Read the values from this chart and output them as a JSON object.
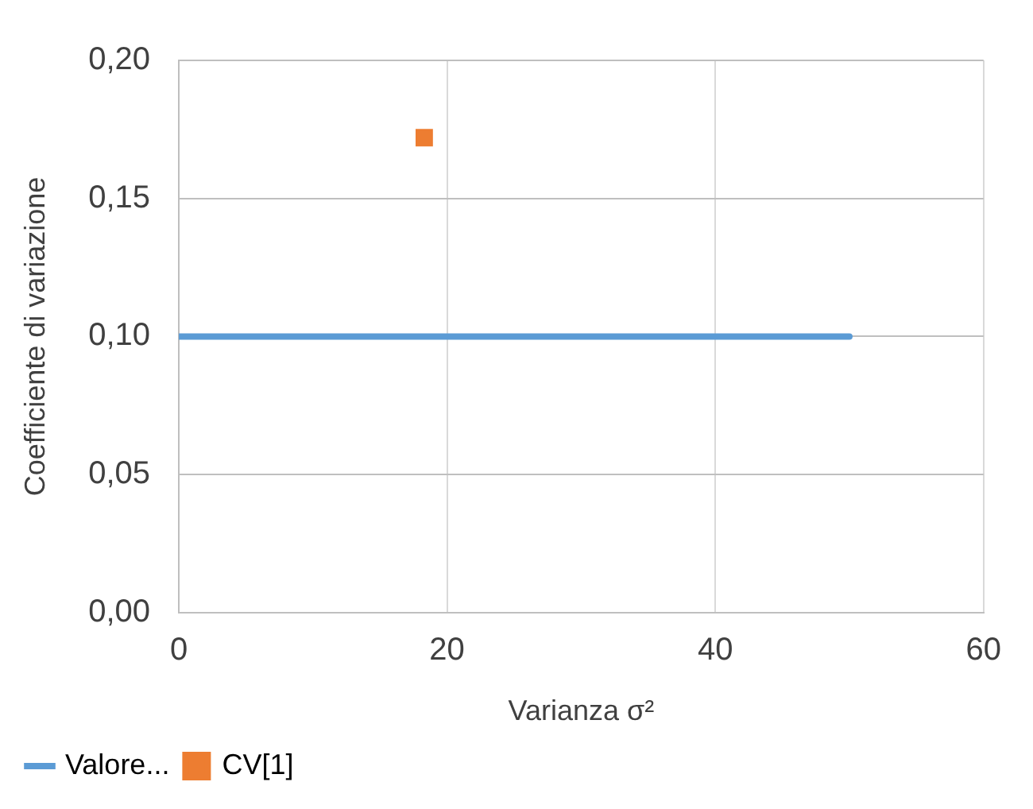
{
  "chart_data": {
    "type": "line",
    "xlabel": "Varianza σ²",
    "ylabel": "Coefficiente di variazione",
    "series": [
      {
        "name": "Valore...",
        "type": "line",
        "color": "#5b9bd5",
        "x": [
          0,
          50
        ],
        "values": [
          0.1,
          0.1
        ],
        "marker": "none"
      },
      {
        "name": "CV[1]",
        "type": "scatter",
        "color": "#ed7d31",
        "x": [
          18.3
        ],
        "values": [
          0.172
        ],
        "marker": "square"
      }
    ],
    "xlim": [
      0,
      60
    ],
    "xticks": [
      0,
      20,
      40,
      60
    ],
    "ylim": [
      0,
      0.2
    ],
    "yticks": [
      {
        "value": 0,
        "label": "0,00"
      },
      {
        "value": 0.05,
        "label": "0,05"
      },
      {
        "value": 0.1,
        "label": "0,10"
      },
      {
        "value": 0.15,
        "label": "0,15"
      },
      {
        "value": 0.2,
        "label": "0,20"
      }
    ],
    "grid": true,
    "legend": "bottom left"
  }
}
